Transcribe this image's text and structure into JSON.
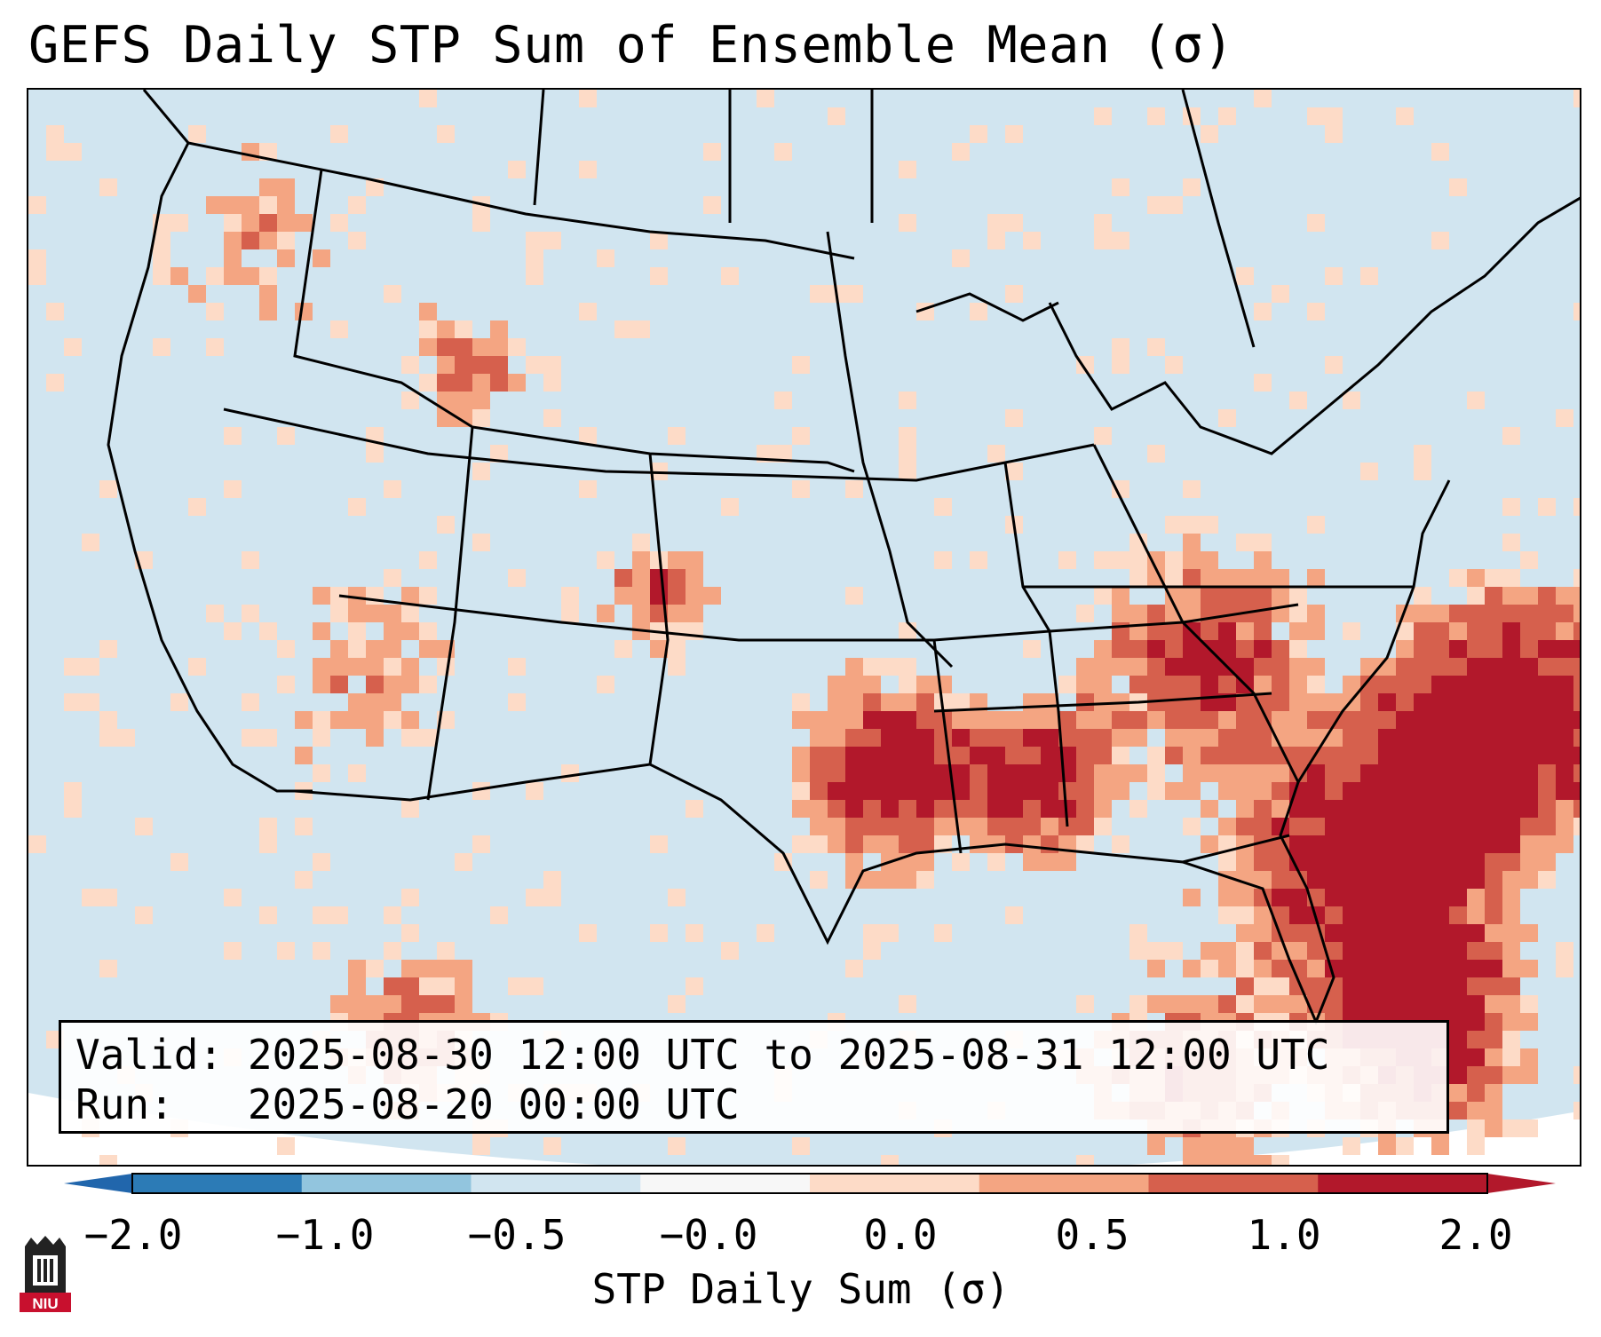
{
  "title": "GEFS Daily STP Sum of Ensemble Mean (σ)",
  "info": {
    "valid_line": "Valid: 2025-08-30 12:00 UTC to 2025-08-31 12:00 UTC",
    "run_line": "Run:   2025-08-20 00:00 UTC"
  },
  "colorbar": {
    "label": "STP Daily Sum (σ)",
    "ticks": [
      "−2.0",
      "−1.0",
      "−0.5",
      "−0.0",
      "0.0",
      "0.5",
      "1.0",
      "2.0"
    ],
    "bin_colors": [
      "#2c7bb6",
      "#92c5de",
      "#d1e5f0",
      "#f7f7f7",
      "#fddbc7",
      "#f4a582",
      "#d6604d",
      "#b2182b"
    ],
    "extend_low_color": "#2166ac",
    "extend_high_color": "#b2182b"
  },
  "map": {
    "region": "Continental United States",
    "background_color": "#d1e5f0",
    "hotspots": [
      {
        "name": "Southern Plains (Oklahoma / Arkansas)",
        "value": 2.0
      },
      {
        "name": "Ohio Valley / Kentucky / Tennessee",
        "value": 1.5
      },
      {
        "name": "Western Atlantic offshore",
        "value": 2.0
      },
      {
        "name": "Southeast / Florida",
        "value": 1.0
      },
      {
        "name": "Colorado Front Range",
        "value": 1.0
      }
    ]
  },
  "logo": {
    "text": "NIU",
    "color": "#c8102e"
  }
}
